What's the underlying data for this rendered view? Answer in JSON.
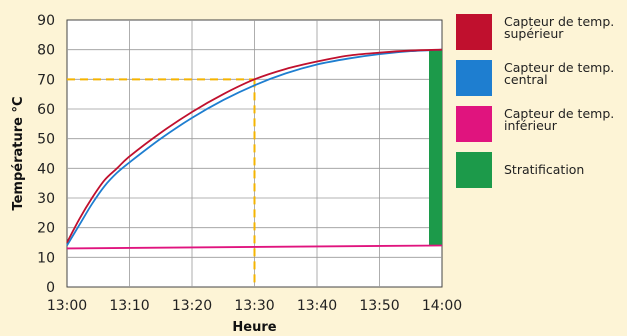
{
  "chart_data": {
    "type": "line",
    "xlabel": "Heure",
    "ylabel": "Température °C",
    "x_tick_labels": [
      "13:00",
      "13:10",
      "13:20",
      "13:30",
      "13:40",
      "13:50",
      "14:00"
    ],
    "x_minutes": [
      0,
      10,
      20,
      30,
      40,
      50,
      60
    ],
    "y_ticks": [
      0,
      10,
      20,
      30,
      40,
      50,
      60,
      70,
      80,
      90
    ],
    "ylim": [
      0,
      90
    ],
    "xlim_minutes": [
      0,
      60
    ],
    "grid": true,
    "legend_position": "right",
    "series": [
      {
        "name": "Capteur de temp. supérieur",
        "color": "#c0102e",
        "x": [
          0,
          2,
          4,
          6,
          8,
          10,
          15,
          20,
          25,
          30,
          35,
          40,
          45,
          50,
          55,
          60
        ],
        "y": [
          15,
          23,
          30,
          36,
          40,
          44,
          52,
          59,
          65,
          70,
          73.5,
          76,
          78,
          79,
          79.7,
          80
        ]
      },
      {
        "name": "Capteur de temp. central",
        "color": "#1e7ed0",
        "x": [
          0,
          2,
          4,
          6,
          8,
          10,
          15,
          20,
          25,
          30,
          35,
          40,
          45,
          50,
          55,
          60
        ],
        "y": [
          14,
          21,
          28,
          34,
          38.5,
          42,
          50,
          57,
          63,
          68,
          72,
          75,
          77,
          78.5,
          79.5,
          80
        ]
      },
      {
        "name": "Capteur de temp. inférieur",
        "color": "#e0147e",
        "x": [
          0,
          60
        ],
        "y": [
          13,
          14
        ]
      }
    ],
    "stratification": {
      "name": "Stratification",
      "color": "#1c9a4a",
      "x_minutes": 60,
      "y_range": [
        14,
        80
      ]
    },
    "reference_lines": {
      "color": "#f5b400",
      "x_minutes": 30,
      "y": 70
    }
  },
  "legend": {
    "items": [
      {
        "label_line1": "Capteur de temp.",
        "label_line2": "supérieur",
        "color": "#c0102e"
      },
      {
        "label_line1": "Capteur de temp.",
        "label_line2": "central",
        "color": "#1e7ed0"
      },
      {
        "label_line1": "Capteur de temp.",
        "label_line2": "inférieur",
        "color": "#e0147e"
      },
      {
        "label_line1": "Stratification",
        "label_line2": "",
        "color": "#1c9a4a"
      }
    ]
  }
}
